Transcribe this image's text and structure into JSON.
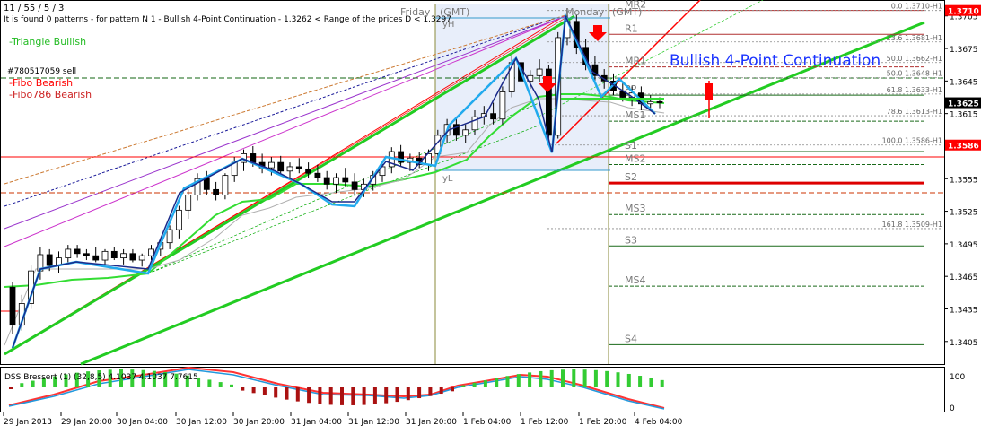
{
  "window": {
    "title": "11 / 55 / 5 / 3",
    "info": "It is found 0 patterns  -  for pattern N 1 - Bullish 4-Point Continuation - 1.3262 < Range of the prices D < 1.3297"
  },
  "labels": {
    "triangle": "-Triangle Bullish",
    "ticket": "#780517059 sell",
    "fibo_bearish": "-Fibo Bearish",
    "fibo786": "-Fibo786 Bearish",
    "pattern_title": "Bullish 4-Point Continuation",
    "session_friday": "Friday",
    "session_monday": "Monday",
    "gmt": "(GMT)",
    "yH": "yH",
    "yL": "yL"
  },
  "pivots": [
    {
      "name": "MR2",
      "value": 1.371
    },
    {
      "name": "R1",
      "value": 1.3688
    },
    {
      "name": "MR1",
      "value": 1.3658
    },
    {
      "name": "PP",
      "value": 1.3632
    },
    {
      "name": "MS1",
      "value": 1.3608
    },
    {
      "name": "S1",
      "value": 1.358
    },
    {
      "name": "MS2",
      "value": 1.3568
    },
    {
      "name": "S2",
      "value": 1.3551
    },
    {
      "name": "MS3",
      "value": 1.3522
    },
    {
      "name": "S3",
      "value": 1.3493
    },
    {
      "name": "MS4",
      "value": 1.3456
    },
    {
      "name": "S4",
      "value": 1.3402
    }
  ],
  "fib_levels": [
    {
      "label": "0.0 1.3710-H1",
      "value": 1.371
    },
    {
      "label": "23.6 1.3681-H1",
      "value": 1.3681
    },
    {
      "label": "50.0 1.3662-H1",
      "value": 1.3662
    },
    {
      "label": "50.0 1.3648-H1",
      "value": 1.3648
    },
    {
      "label": "61.8 1.3633-H1",
      "value": 1.3633
    },
    {
      "label": "78.6 1.3613-H1",
      "value": 1.3613
    },
    {
      "label": "100.0 1.3586-H1",
      "value": 1.3586
    },
    {
      "label": "161.8 1.3509-H1",
      "value": 1.3509
    }
  ],
  "price_tags": [
    {
      "value": "1.3710",
      "color": "#ff0000"
    },
    {
      "value": "1.3625",
      "color": "#000000"
    },
    {
      "value": "1.3586",
      "color": "#ff0000"
    }
  ],
  "indicator": {
    "label": "DSS Bressert (1) (32,8,5) 4.1037 4.1037 7.7615",
    "y_ticks": [
      "100",
      "0"
    ]
  },
  "chart_data": {
    "type": "candlestick",
    "title": "",
    "y_ticks": [
      "1.3705",
      "1.3675",
      "1.3645",
      "1.3615",
      "1.3585",
      "1.3555",
      "1.3525",
      "1.3495",
      "1.3465",
      "1.3435",
      "1.3405"
    ],
    "ylim": [
      1.3385,
      1.3718
    ],
    "x_labels": [
      "29 Jan 2013",
      "29 Jan 20:00",
      "30 Jan 04:00",
      "30 Jan 12:00",
      "30 Jan 20:00",
      "31 Jan 04:00",
      "31 Jan 12:00",
      "31 Jan 20:00",
      "1 Feb 04:00",
      "1 Feb 12:00",
      "1 Feb 20:00",
      "4 Feb 04:00"
    ],
    "candles": [
      [
        1.3455,
        1.346,
        1.3412,
        1.342
      ],
      [
        1.342,
        1.3448,
        1.3415,
        1.344
      ],
      [
        1.344,
        1.3475,
        1.3435,
        1.347
      ],
      [
        1.347,
        1.3492,
        1.3462,
        1.3485
      ],
      [
        1.3485,
        1.349,
        1.347,
        1.3475
      ],
      [
        1.3475,
        1.3488,
        1.3468,
        1.3482
      ],
      [
        1.3482,
        1.3494,
        1.3478,
        1.349
      ],
      [
        1.349,
        1.3494,
        1.3482,
        1.3486
      ],
      [
        1.3486,
        1.349,
        1.348,
        1.3484
      ],
      [
        1.3484,
        1.3492,
        1.3478,
        1.348
      ],
      [
        1.348,
        1.349,
        1.3476,
        1.3488
      ],
      [
        1.3488,
        1.3492,
        1.348,
        1.3482
      ],
      [
        1.3482,
        1.349,
        1.3476,
        1.3486
      ],
      [
        1.3486,
        1.349,
        1.3478,
        1.348
      ],
      [
        1.348,
        1.3486,
        1.3474,
        1.3484
      ],
      [
        1.3484,
        1.3494,
        1.348,
        1.349
      ],
      [
        1.349,
        1.35,
        1.3484,
        1.3496
      ],
      [
        1.3496,
        1.3512,
        1.349,
        1.3508
      ],
      [
        1.3508,
        1.353,
        1.35,
        1.3526
      ],
      [
        1.3526,
        1.3545,
        1.3518,
        1.354
      ],
      [
        1.354,
        1.356,
        1.3535,
        1.3555
      ],
      [
        1.3555,
        1.3562,
        1.354,
        1.3545
      ],
      [
        1.3545,
        1.3552,
        1.3535,
        1.354
      ],
      [
        1.354,
        1.356,
        1.3536,
        1.3558
      ],
      [
        1.3558,
        1.3575,
        1.3552,
        1.357
      ],
      [
        1.357,
        1.3582,
        1.3562,
        1.3578
      ],
      [
        1.3578,
        1.3585,
        1.3566,
        1.357
      ],
      [
        1.357,
        1.3578,
        1.356,
        1.3565
      ],
      [
        1.3565,
        1.3575,
        1.3558,
        1.357
      ],
      [
        1.357,
        1.3576,
        1.356,
        1.3562
      ],
      [
        1.3562,
        1.357,
        1.3555,
        1.3566
      ],
      [
        1.3566,
        1.3574,
        1.356,
        1.3564
      ],
      [
        1.3564,
        1.357,
        1.3556,
        1.356
      ],
      [
        1.356,
        1.3568,
        1.3552,
        1.3556
      ],
      [
        1.3556,
        1.3562,
        1.3545,
        1.355
      ],
      [
        1.355,
        1.356,
        1.3542,
        1.3556
      ],
      [
        1.3556,
        1.3565,
        1.3548,
        1.3552
      ],
      [
        1.3552,
        1.356,
        1.354,
        1.3545
      ],
      [
        1.3545,
        1.3555,
        1.3538,
        1.355
      ],
      [
        1.355,
        1.3562,
        1.3544,
        1.3558
      ],
      [
        1.3558,
        1.357,
        1.3552,
        1.3566
      ],
      [
        1.3566,
        1.3584,
        1.356,
        1.358
      ],
      [
        1.358,
        1.3586,
        1.3566,
        1.357
      ],
      [
        1.357,
        1.3578,
        1.3562,
        1.3574
      ],
      [
        1.3574,
        1.358,
        1.3565,
        1.3568
      ],
      [
        1.3568,
        1.3582,
        1.3562,
        1.3578
      ],
      [
        1.3578,
        1.36,
        1.3572,
        1.3595
      ],
      [
        1.3595,
        1.361,
        1.3588,
        1.3605
      ],
      [
        1.3605,
        1.3612,
        1.359,
        1.3595
      ],
      [
        1.3595,
        1.3605,
        1.3588,
        1.36
      ],
      [
        1.36,
        1.3618,
        1.3595,
        1.3612
      ],
      [
        1.3612,
        1.3622,
        1.3605,
        1.3615
      ],
      [
        1.3615,
        1.3625,
        1.3605,
        1.361
      ],
      [
        1.361,
        1.364,
        1.3605,
        1.3635
      ],
      [
        1.3635,
        1.3668,
        1.363,
        1.3662
      ],
      [
        1.3662,
        1.3668,
        1.364,
        1.3645
      ],
      [
        1.3645,
        1.3655,
        1.3638,
        1.365
      ],
      [
        1.365,
        1.3665,
        1.3644,
        1.3656
      ],
      [
        1.3656,
        1.366,
        1.3588,
        1.3595
      ],
      [
        1.3595,
        1.369,
        1.3592,
        1.3685
      ],
      [
        1.3685,
        1.371,
        1.3678,
        1.37
      ],
      [
        1.37,
        1.3706,
        1.367,
        1.3676
      ],
      [
        1.3676,
        1.3684,
        1.3655,
        1.366
      ],
      [
        1.366,
        1.3668,
        1.3645,
        1.365
      ],
      [
        1.365,
        1.3656,
        1.3638,
        1.3645
      ],
      [
        1.3645,
        1.3652,
        1.3632,
        1.3636
      ],
      [
        1.3636,
        1.3645,
        1.3626,
        1.363
      ],
      [
        1.363,
        1.364,
        1.3622,
        1.3634
      ],
      [
        1.3634,
        1.364,
        1.3618,
        1.3624
      ],
      [
        1.3624,
        1.3632,
        1.362,
        1.3626
      ],
      [
        1.3626,
        1.363,
        1.362,
        1.3625
      ]
    ]
  }
}
